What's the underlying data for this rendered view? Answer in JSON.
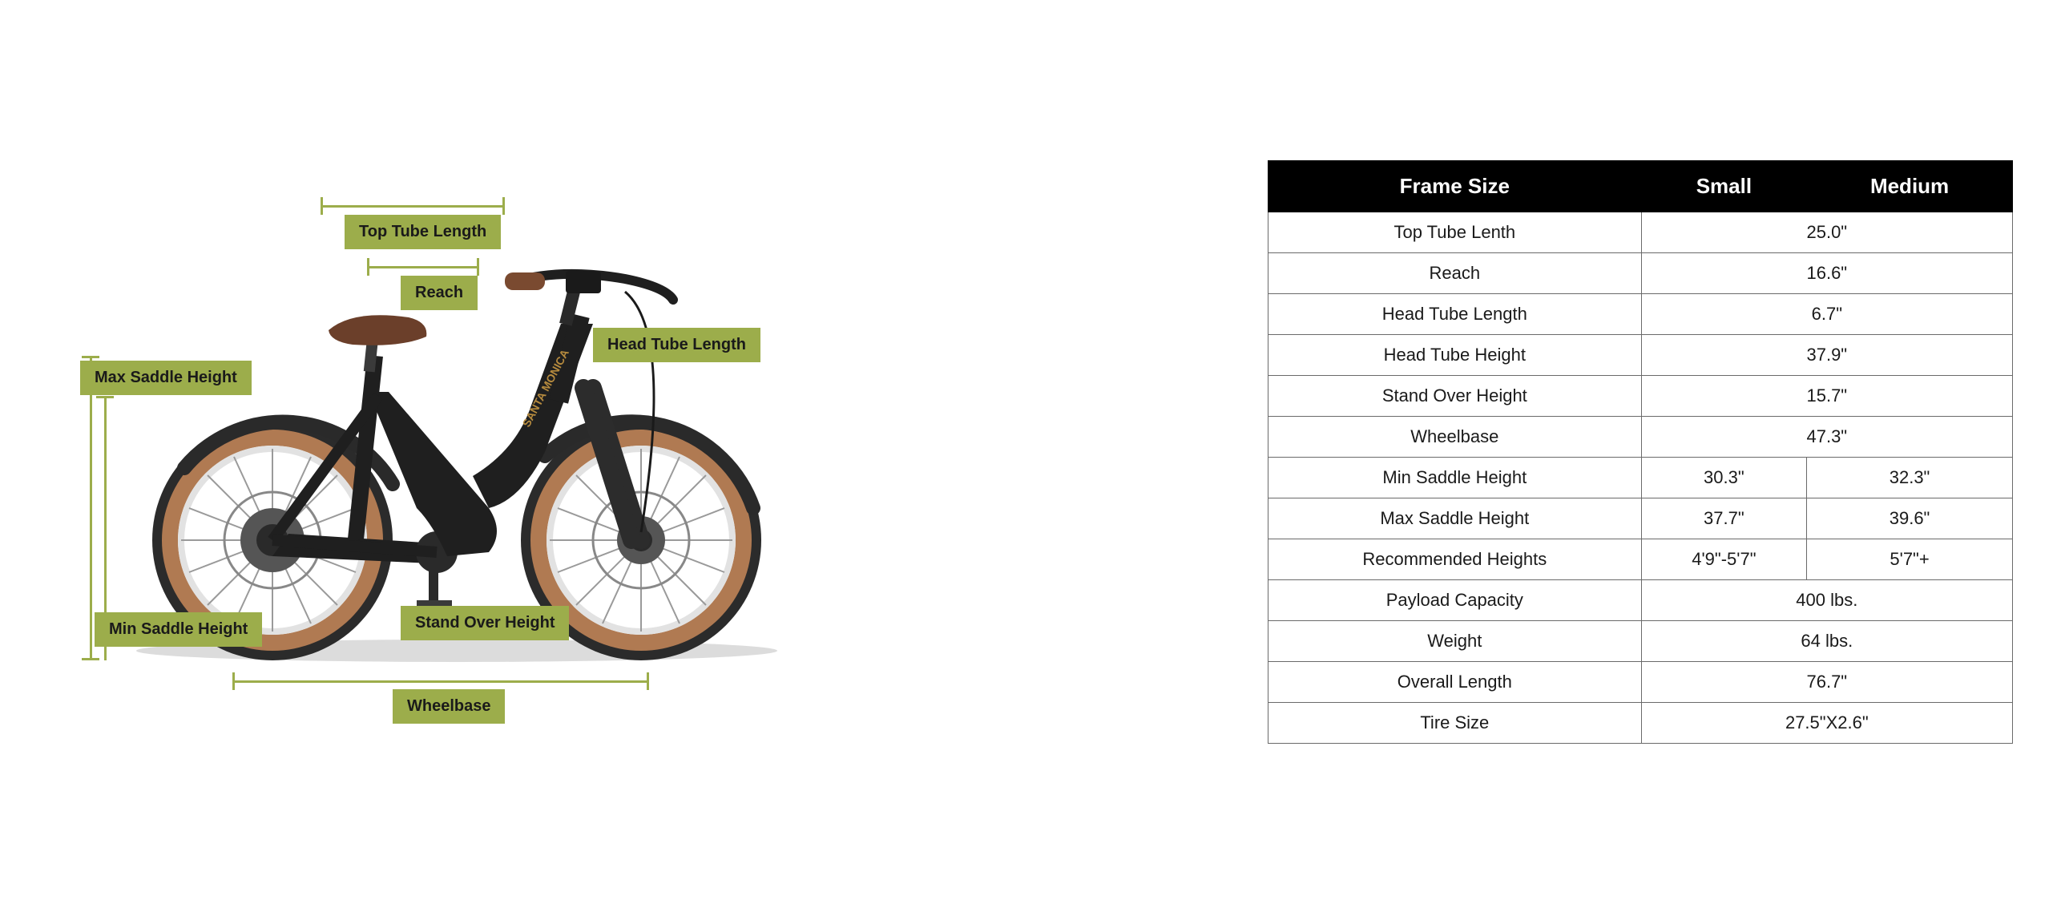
{
  "diagram": {
    "labels": {
      "top_tube_length": "Top Tube Length",
      "reach": "Reach",
      "head_tube_length": "Head Tube Length",
      "max_saddle_height": "Max Saddle Height",
      "min_saddle_height": "Min Saddle Height",
      "stand_over_height": "Stand Over Height",
      "wheelbase": "Wheelbase"
    },
    "label_bg": "#9cad4b",
    "label_text_color": "#1a1a1a",
    "line_color": "#9cad4b",
    "bike_colors": {
      "frame": "#1f1f1f",
      "frame_highlight": "#3a3a3a",
      "tire_outer": "#8c5a3a",
      "tire_wall": "#b07a52",
      "tire_tread": "#2b2b2b",
      "rim": "#e2e2e2",
      "hub": "#555555",
      "spoke": "#9a9a9a",
      "saddle": "#6b3f2a",
      "grip": "#7a4a30",
      "fender": "#2a2a2a",
      "fork": "#2c2c2c",
      "brand_text": "#b58a3e"
    },
    "brand_text": "SANTA MONICA"
  },
  "table": {
    "header": {
      "c0": "Frame Size",
      "c1": "Small",
      "c2": "Medium"
    },
    "header_bg": "#000000",
    "header_fg": "#ffffff",
    "border_color": "#6a6a6a",
    "rows": [
      {
        "label": "Top Tube Lenth",
        "merged": true,
        "value": "25.0\""
      },
      {
        "label": "Reach",
        "merged": true,
        "value": "16.6\""
      },
      {
        "label": "Head Tube Length",
        "merged": true,
        "value": "6.7\""
      },
      {
        "label": "Head Tube Height",
        "merged": true,
        "value": "37.9\""
      },
      {
        "label": "Stand Over Height",
        "merged": true,
        "value": "15.7\""
      },
      {
        "label": "Wheelbase",
        "merged": true,
        "value": "47.3\""
      },
      {
        "label": "Min Saddle Height",
        "merged": false,
        "small": "30.3\"",
        "medium": "32.3\""
      },
      {
        "label": "Max Saddle Height",
        "merged": false,
        "small": "37.7\"",
        "medium": "39.6\""
      },
      {
        "label": "Recommended Heights",
        "merged": false,
        "small": "4'9\"-5'7\"",
        "medium": "5'7\"+"
      },
      {
        "label": "Payload Capacity",
        "merged": true,
        "value": "400 lbs."
      },
      {
        "label": "Weight",
        "merged": true,
        "value": "64 lbs."
      },
      {
        "label": "Overall Length",
        "merged": true,
        "value": "76.7\""
      },
      {
        "label": "Tire Size",
        "merged": true,
        "value": "27.5\"X2.6\""
      }
    ]
  }
}
